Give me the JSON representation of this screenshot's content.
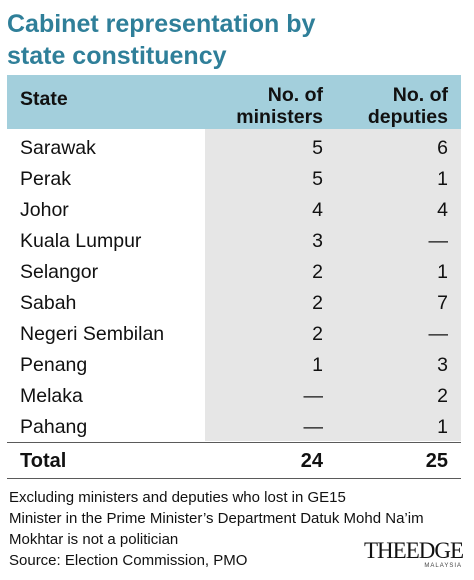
{
  "title": "Cabinet representation by state constituency",
  "title_lines": [
    "Cabinet representation by",
    "state constituency"
  ],
  "colors": {
    "title": "#2f7f99",
    "header_bg": "#a3cfdc",
    "shade_bg": "#e6e6e6"
  },
  "chart_data": {
    "type": "table",
    "title": "Cabinet representation by state constituency",
    "columns": [
      "State",
      "No. of ministers",
      "No. of deputies"
    ],
    "header_lines": {
      "state": [
        "State"
      ],
      "ministers": [
        "No. of",
        "ministers"
      ],
      "deputies": [
        "No. of",
        "deputies"
      ]
    },
    "rows": [
      {
        "state": "Sarawak",
        "ministers": "5",
        "deputies": "6"
      },
      {
        "state": "Perak",
        "ministers": "5",
        "deputies": "1"
      },
      {
        "state": "Johor",
        "ministers": "4",
        "deputies": "4"
      },
      {
        "state": "Kuala Lumpur",
        "ministers": "3",
        "deputies": "—"
      },
      {
        "state": "Selangor",
        "ministers": "2",
        "deputies": "1"
      },
      {
        "state": "Sabah",
        "ministers": "2",
        "deputies": "7"
      },
      {
        "state": "Negeri Sembilan",
        "ministers": "2",
        "deputies": "—"
      },
      {
        "state": "Penang",
        "ministers": "1",
        "deputies": "3"
      },
      {
        "state": "Melaka",
        "ministers": "—",
        "deputies": "2"
      },
      {
        "state": "Pahang",
        "ministers": "—",
        "deputies": "1"
      }
    ],
    "total": {
      "label": "Total",
      "ministers": "24",
      "deputies": "25"
    }
  },
  "notes": [
    "Excluding ministers and deputies who lost in GE15",
    "Minister in the Prime Minister’s Department Datuk Mohd Na’im",
    "Mokhtar is not a politician",
    "Source: Election Commission, PMO"
  ],
  "logo": {
    "text": "THEEDGE",
    "subtext": "MALAYSIA"
  }
}
